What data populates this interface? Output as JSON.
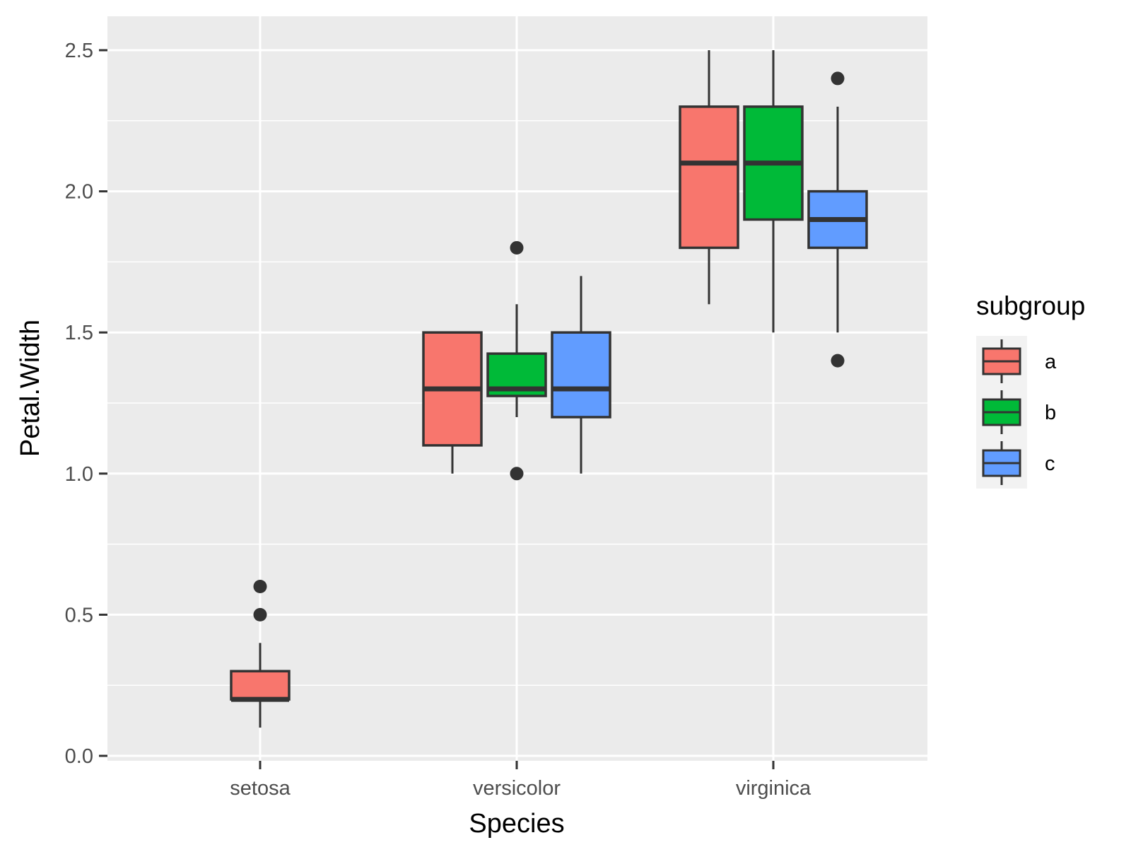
{
  "chart_data": {
    "type": "boxplot",
    "title": "",
    "xlabel": "Species",
    "ylabel": "Petal.Width",
    "ylim": [
      0,
      2.6
    ],
    "yticks": [
      0.0,
      0.5,
      1.0,
      1.5,
      2.0,
      2.5
    ],
    "ytick_labels": [
      "0.0",
      "0.5",
      "1.0",
      "1.5",
      "2.0",
      "2.5"
    ],
    "categories": [
      "setosa",
      "versicolor",
      "virginica"
    ],
    "grid": true,
    "legend": {
      "title": "subgroup",
      "position": "right",
      "entries": [
        "a",
        "b",
        "c"
      ]
    },
    "colors": {
      "a": "#F8766D",
      "b": "#00BA38",
      "c": "#619CFF",
      "panel": "#EBEBEB",
      "grid": "#FFFFFF",
      "outline": "#333333"
    },
    "boxes": [
      {
        "category": "setosa",
        "subgroup": "a",
        "whisker_low": 0.1,
        "q1": 0.2,
        "median": 0.2,
        "q3": 0.3,
        "whisker_high": 0.4,
        "outliers": [
          0.5,
          0.6
        ]
      },
      {
        "category": "versicolor",
        "subgroup": "a",
        "whisker_low": 1.0,
        "q1": 1.1,
        "median": 1.3,
        "q3": 1.5,
        "whisker_high": 1.5,
        "outliers": []
      },
      {
        "category": "versicolor",
        "subgroup": "b",
        "whisker_low": 1.2,
        "q1": 1.275,
        "median": 1.3,
        "q3": 1.425,
        "whisker_high": 1.6,
        "outliers": [
          1.8,
          1.0
        ]
      },
      {
        "category": "versicolor",
        "subgroup": "c",
        "whisker_low": 1.0,
        "q1": 1.2,
        "median": 1.3,
        "q3": 1.5,
        "whisker_high": 1.7,
        "outliers": []
      },
      {
        "category": "virginica",
        "subgroup": "a",
        "whisker_low": 1.6,
        "q1": 1.8,
        "median": 2.1,
        "q3": 2.3,
        "whisker_high": 2.5,
        "outliers": []
      },
      {
        "category": "virginica",
        "subgroup": "b",
        "whisker_low": 1.5,
        "q1": 1.9,
        "median": 2.1,
        "q3": 2.3,
        "whisker_high": 2.5,
        "outliers": []
      },
      {
        "category": "virginica",
        "subgroup": "c",
        "whisker_low": 1.5,
        "q1": 1.8,
        "median": 1.9,
        "q3": 2.0,
        "whisker_high": 2.3,
        "outliers": [
          2.4,
          1.4
        ]
      }
    ]
  }
}
